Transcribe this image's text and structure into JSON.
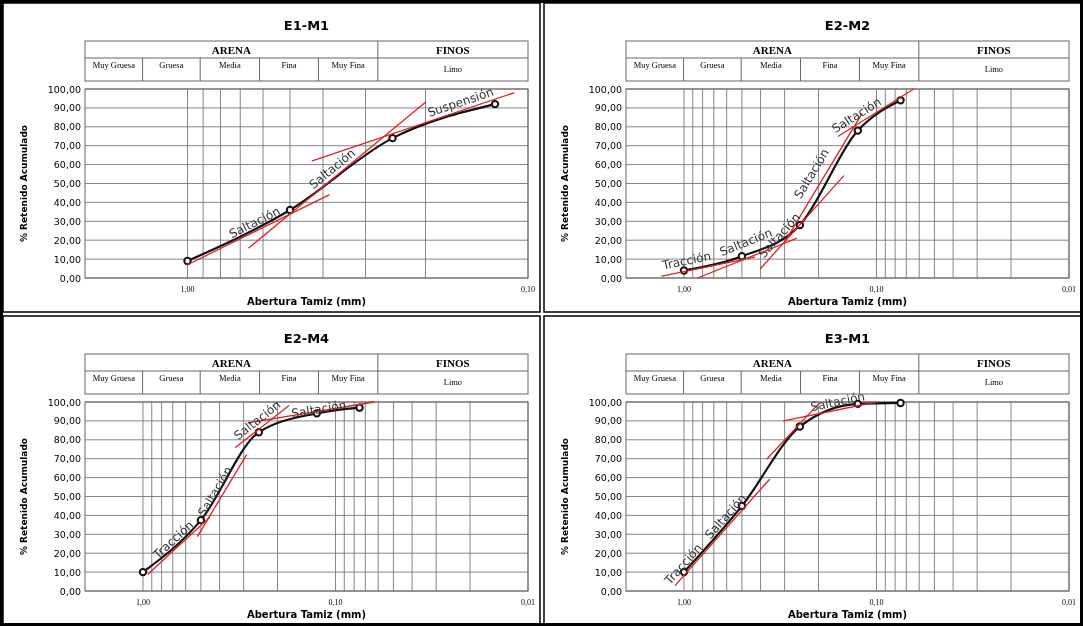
{
  "chart_data": [
    {
      "type": "line",
      "title": "E1-M1",
      "xlabel": "Abertura Tamiz (mm)",
      "ylabel": "% Retenido Acumulado",
      "log": "x",
      "xlim": [
        2,
        0.1
      ],
      "xticks": [
        {
          "value": 1,
          "label": "1,00"
        },
        {
          "value": 0.9,
          "label": null
        },
        {
          "value": 0.8,
          "label": null
        },
        {
          "value": 0.7,
          "label": null
        },
        {
          "value": 0.6,
          "label": null
        },
        {
          "value": 0.5,
          "label": null
        },
        {
          "value": 0.4,
          "label": null
        },
        {
          "value": 0.3,
          "label": null
        },
        {
          "value": 0.2,
          "label": null
        },
        {
          "value": 0.1,
          "label": "0,10"
        }
      ],
      "ylim": [
        0,
        100
      ],
      "yticks": [
        {
          "value": 0,
          "label": "0,00"
        },
        {
          "value": 10,
          "label": "10,00"
        },
        {
          "value": 20,
          "label": "20,00"
        },
        {
          "value": 30,
          "label": "30,00"
        },
        {
          "value": 40,
          "label": "40,00"
        },
        {
          "value": 50,
          "label": "50,00"
        },
        {
          "value": 60,
          "label": "60,00"
        },
        {
          "value": 70,
          "label": "70,00"
        },
        {
          "value": 80,
          "label": "80,00"
        },
        {
          "value": 90,
          "label": "90,00"
        },
        {
          "value": 100,
          "label": "100,00"
        }
      ],
      "grid": true,
      "marker": "circle",
      "annotations": [
        "ARENA",
        "FINOS",
        "Muy Gruesa",
        "Gruesa",
        "Media",
        "Fina",
        "Muy Fina",
        "Limo",
        {
          "text": "Saltación",
          "x": 0.62,
          "y": 25.5
        },
        {
          "text": "Saltación",
          "x": 0.363,
          "y": 54.5
        },
        {
          "text": "Suspensión",
          "x": 0.155,
          "y": 89
        }
      ],
      "series": [
        {
          "color": "#111111",
          "x": [
            1,
            0.5,
            0.25,
            0.125
          ],
          "values": [
            9,
            36,
            74,
            92
          ]
        },
        {
          "type": "line",
          "color": "#e02020",
          "marker": "none",
          "x": [
            1,
            0.384
          ],
          "values": [
            7,
            44
          ]
        },
        {
          "type": "line",
          "color": "#e02020",
          "marker": "none",
          "x": [
            0.66,
            0.2
          ],
          "values": [
            16,
            93
          ]
        },
        {
          "type": "line",
          "color": "#e02020",
          "marker": "none",
          "x": [
            0.43,
            0.11
          ],
          "values": [
            62,
            98
          ]
        }
      ]
    },
    {
      "type": "line",
      "title": "E2-M2",
      "xlabel": "Abertura Tamiz (mm)",
      "ylabel": "% Retenido Acumulado",
      "log": "x",
      "xlim": [
        2,
        0.01
      ],
      "xticks": [
        {
          "value": 1,
          "label": "1,00"
        },
        {
          "value": 0.9,
          "label": null
        },
        {
          "value": 0.8,
          "label": null
        },
        {
          "value": 0.7,
          "label": null
        },
        {
          "value": 0.6,
          "label": null
        },
        {
          "value": 0.5,
          "label": null
        },
        {
          "value": 0.4,
          "label": null
        },
        {
          "value": 0.3,
          "label": null
        },
        {
          "value": 0.2,
          "label": null
        },
        {
          "value": 0.1,
          "label": "0,10"
        },
        {
          "value": 0.09,
          "label": null
        },
        {
          "value": 0.08,
          "label": null
        },
        {
          "value": 0.07,
          "label": null
        },
        {
          "value": 0.06,
          "label": null
        },
        {
          "value": 0.05,
          "label": null
        },
        {
          "value": 0.04,
          "label": null
        },
        {
          "value": 0.03,
          "label": null
        },
        {
          "value": 0.02,
          "label": null
        },
        {
          "value": 0.01,
          "label": "0,01"
        }
      ],
      "ylim": [
        0,
        100
      ],
      "yticks": [
        {
          "value": 0,
          "label": "0,00"
        },
        {
          "value": 10,
          "label": "10,00"
        },
        {
          "value": 20,
          "label": "20,00"
        },
        {
          "value": 30,
          "label": "30,00"
        },
        {
          "value": 40,
          "label": "40,00"
        },
        {
          "value": 50,
          "label": "50,00"
        },
        {
          "value": 60,
          "label": "60,00"
        },
        {
          "value": 70,
          "label": "70,00"
        },
        {
          "value": 80,
          "label": "80,00"
        },
        {
          "value": 90,
          "label": "90,00"
        },
        {
          "value": 100,
          "label": "100,00"
        }
      ],
      "grid": true,
      "marker": "circle",
      "annotations": [
        "ARENA",
        "FINOS",
        "Muy Gruesa",
        "Gruesa",
        "Media",
        "Fina",
        "Muy Fina",
        "Limo",
        {
          "text": "Tracción",
          "x": 0.95,
          "y": 5
        },
        {
          "text": "Saltación",
          "x": 0.46,
          "y": 15
        },
        {
          "text": "Saltación",
          "x": 0.2,
          "y": 53
        },
        {
          "text": "Saltación",
          "x": 0.297,
          "y": 19.7
        },
        {
          "text": "Saltación",
          "x": 0.1205,
          "y": 82.5
        }
      ],
      "series": [
        {
          "color": "#111111",
          "x": [
            1,
            0.5,
            0.25,
            0.125,
            0.075
          ],
          "values": [
            4,
            11.5,
            28,
            78,
            94
          ]
        },
        {
          "type": "line",
          "color": "#e02020",
          "marker": "none",
          "x": [
            1.3,
            0.43
          ],
          "values": [
            1,
            11
          ]
        },
        {
          "type": "line",
          "color": "#e02020",
          "marker": "none",
          "x": [
            0.85,
            0.26
          ],
          "values": [
            0,
            21
          ]
        },
        {
          "type": "line",
          "color": "#e02020",
          "marker": "none",
          "x": [
            0.4,
            0.148
          ],
          "values": [
            5,
            54
          ]
        },
        {
          "type": "line",
          "color": "#e02020",
          "marker": "none",
          "x": [
            0.3,
            0.119
          ],
          "values": [
            19,
            87
          ]
        },
        {
          "type": "line",
          "color": "#e02020",
          "marker": "none",
          "x": [
            0.158,
            0.064
          ],
          "values": [
            75,
            100
          ]
        }
      ]
    },
    {
      "type": "line",
      "title": "E2-M4",
      "xlabel": "Abertura Tamiz (mm)",
      "ylabel": "% Retenido Acumulado",
      "log": "x",
      "xlim": [
        2,
        0.01
      ],
      "xticks": [
        {
          "value": 1,
          "label": "1,00"
        },
        {
          "value": 0.9,
          "label": null
        },
        {
          "value": 0.8,
          "label": null
        },
        {
          "value": 0.7,
          "label": null
        },
        {
          "value": 0.6,
          "label": null
        },
        {
          "value": 0.5,
          "label": null
        },
        {
          "value": 0.4,
          "label": null
        },
        {
          "value": 0.3,
          "label": null
        },
        {
          "value": 0.2,
          "label": null
        },
        {
          "value": 0.1,
          "label": "0,10"
        },
        {
          "value": 0.09,
          "label": null
        },
        {
          "value": 0.08,
          "label": null
        },
        {
          "value": 0.07,
          "label": null
        },
        {
          "value": 0.06,
          "label": null
        },
        {
          "value": 0.05,
          "label": null
        },
        {
          "value": 0.04,
          "label": null
        },
        {
          "value": 0.03,
          "label": null
        },
        {
          "value": 0.02,
          "label": null
        },
        {
          "value": 0.01,
          "label": "0,01"
        }
      ],
      "ylim": [
        0,
        100
      ],
      "yticks": [
        {
          "value": 0,
          "label": "0,00"
        },
        {
          "value": 10,
          "label": "10,00"
        },
        {
          "value": 20,
          "label": "20,00"
        },
        {
          "value": 30,
          "label": "30,00"
        },
        {
          "value": 40,
          "label": "40,00"
        },
        {
          "value": 50,
          "label": "50,00"
        },
        {
          "value": 60,
          "label": "60,00"
        },
        {
          "value": 70,
          "label": "70,00"
        },
        {
          "value": 80,
          "label": "80,00"
        },
        {
          "value": 90,
          "label": "90,00"
        },
        {
          "value": 100,
          "label": "100,00"
        }
      ],
      "grid": true,
      "marker": "circle",
      "annotations": [
        "ARENA",
        "FINOS",
        "Muy Gruesa",
        "Gruesa",
        "Media",
        "Fina",
        "Muy Fina",
        "Limo",
        {
          "text": "Tracción",
          "x": 0.65,
          "y": 24
        },
        {
          "text": "Saltación",
          "x": 0.388,
          "y": 50.5
        },
        {
          "text": "Saltación",
          "x": 0.24,
          "y": 87
        },
        {
          "text": "Saltación",
          "x": 0.12,
          "y": 92
        }
      ],
      "series": [
        {
          "color": "#111111",
          "x": [
            1,
            0.5,
            0.25,
            0.125,
            0.075
          ],
          "values": [
            10,
            37.5,
            84,
            94,
            97
          ]
        },
        {
          "type": "line",
          "color": "#e02020",
          "marker": "none",
          "x": [
            0.94,
            0.45
          ],
          "values": [
            9,
            39
          ]
        },
        {
          "type": "line",
          "color": "#e02020",
          "marker": "none",
          "x": [
            0.52,
            0.29
          ],
          "values": [
            29,
            72
          ]
        },
        {
          "type": "line",
          "color": "#e02020",
          "marker": "none",
          "x": [
            0.33,
            0.175
          ],
          "values": [
            76,
            98
          ]
        },
        {
          "type": "line",
          "color": "#e02020",
          "marker": "none",
          "x": [
            0.284,
            0.063
          ],
          "values": [
            89,
            100
          ]
        }
      ]
    },
    {
      "type": "line",
      "title": "E3-M1",
      "xlabel": "Abertura Tamiz (mm)",
      "ylabel": "% Retenido Acumulado",
      "log": "x",
      "xlim": [
        2,
        0.01
      ],
      "xticks": [
        {
          "value": 1,
          "label": "1,00"
        },
        {
          "value": 0.9,
          "label": null
        },
        {
          "value": 0.8,
          "label": null
        },
        {
          "value": 0.7,
          "label": null
        },
        {
          "value": 0.6,
          "label": null
        },
        {
          "value": 0.5,
          "label": null
        },
        {
          "value": 0.4,
          "label": null
        },
        {
          "value": 0.3,
          "label": null
        },
        {
          "value": 0.2,
          "label": null
        },
        {
          "value": 0.1,
          "label": "0,10"
        },
        {
          "value": 0.09,
          "label": null
        },
        {
          "value": 0.08,
          "label": null
        },
        {
          "value": 0.07,
          "label": null
        },
        {
          "value": 0.06,
          "label": null
        },
        {
          "value": 0.05,
          "label": null
        },
        {
          "value": 0.04,
          "label": null
        },
        {
          "value": 0.03,
          "label": null
        },
        {
          "value": 0.02,
          "label": null
        },
        {
          "value": 0.01,
          "label": "0,01"
        }
      ],
      "ylim": [
        0,
        100
      ],
      "yticks": [
        {
          "value": 0,
          "label": "0,00"
        },
        {
          "value": 10,
          "label": "10,00"
        },
        {
          "value": 20,
          "label": "20,00"
        },
        {
          "value": 30,
          "label": "30,00"
        },
        {
          "value": 40,
          "label": "40,00"
        },
        {
          "value": 50,
          "label": "50,00"
        },
        {
          "value": 60,
          "label": "60,00"
        },
        {
          "value": 70,
          "label": "70,00"
        },
        {
          "value": 80,
          "label": "80,00"
        },
        {
          "value": 90,
          "label": "90,00"
        },
        {
          "value": 100,
          "label": "100,00"
        }
      ],
      "grid": true,
      "marker": "circle",
      "annotations": [
        "ARENA",
        "FINOS",
        "Muy Gruesa",
        "Gruesa",
        "Media",
        "Fina",
        "Muy Fina",
        "Limo",
        {
          "text": "Tracción",
          "x": 0.937,
          "y": 11.4
        },
        {
          "text": "Saltación",
          "x": 0.565,
          "y": 36.6
        },
        {
          "text": "Saltación",
          "x": 0.156,
          "y": 96
        }
      ],
      "series": [
        {
          "color": "#111111",
          "x": [
            1,
            0.5,
            0.25,
            0.125,
            0.075
          ],
          "values": [
            10,
            45,
            87,
            99,
            99.5
          ]
        },
        {
          "type": "line",
          "color": "#e02020",
          "marker": "none",
          "x": [
            1.11,
            0.36
          ],
          "values": [
            3,
            59
          ]
        },
        {
          "type": "line",
          "color": "#e02020",
          "marker": "none",
          "x": [
            0.37,
            0.2
          ],
          "values": [
            70,
            99
          ]
        },
        {
          "type": "line",
          "color": "#e02020",
          "marker": "none",
          "x": [
            0.304,
            0.1
          ],
          "values": [
            90,
            100
          ]
        }
      ]
    }
  ]
}
